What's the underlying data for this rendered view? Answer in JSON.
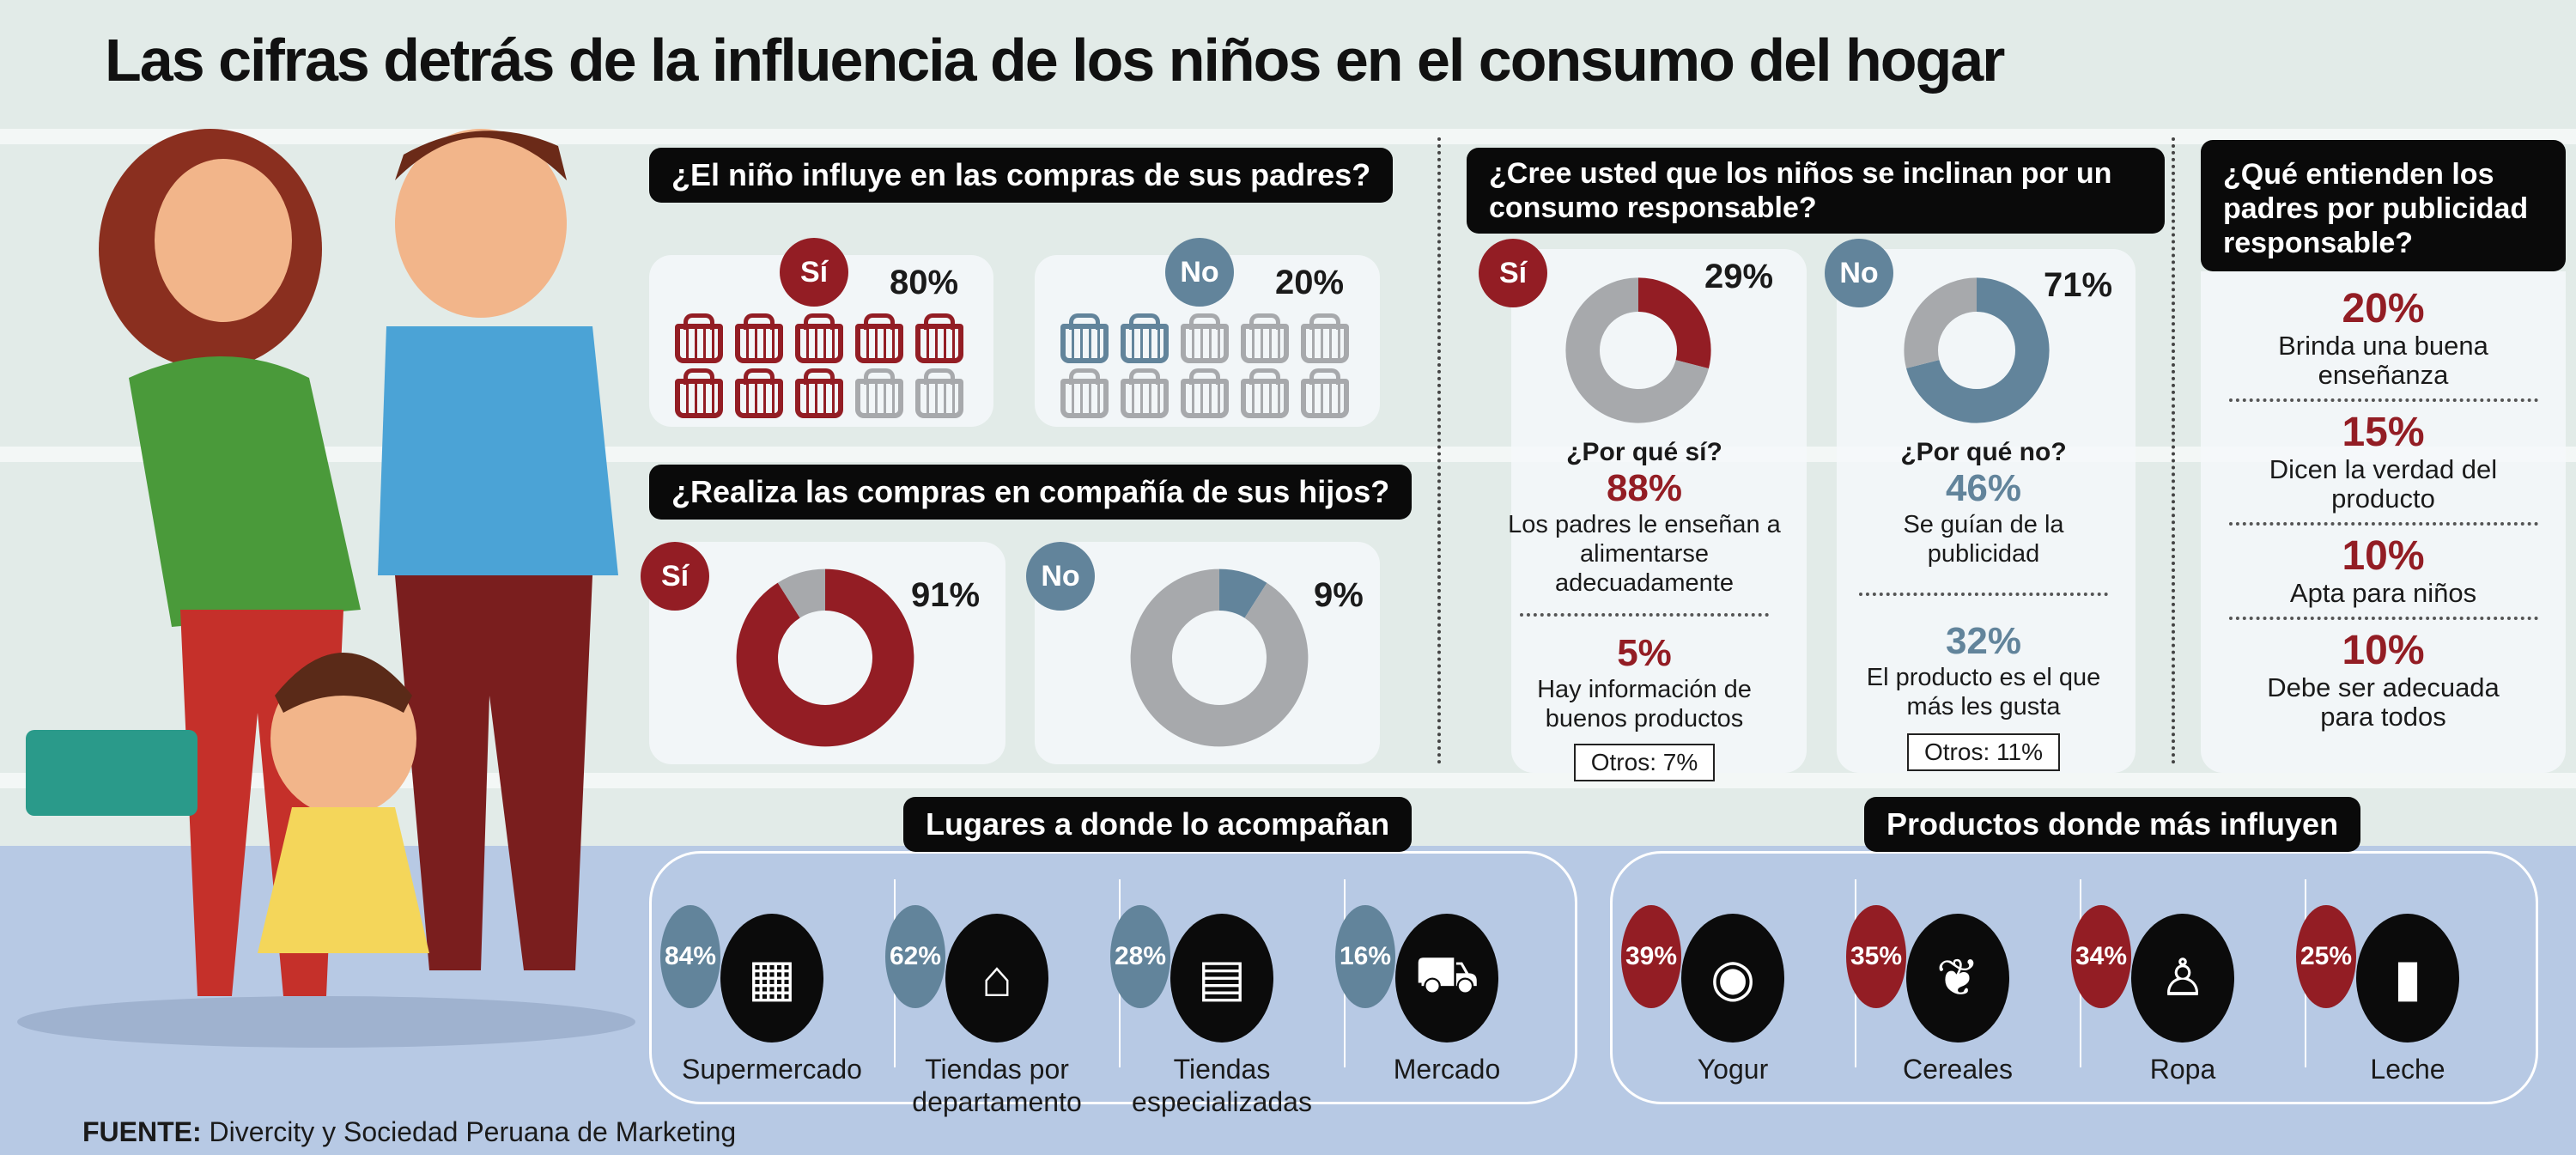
{
  "title": "Las cifras detrás de la influencia de los niños en el consumo del hogar",
  "colors": {
    "red": "#931d24",
    "blue": "#62849b",
    "gray": "#a7a9ac"
  },
  "q1": {
    "question": "¿El niño influye en las compras de sus padres?",
    "yes_label": "Sí",
    "yes_pct": "80%",
    "yes_value": 8,
    "no_label": "No",
    "no_pct": "20%",
    "no_value": 2
  },
  "q2": {
    "question": "¿Realiza las compras en compañía de sus hijos?",
    "yes_label": "Sí",
    "yes_pct": "91%",
    "no_label": "No",
    "no_pct": "9%"
  },
  "q3": {
    "question": "¿Cree usted que los niños se inclinan por un consumo responsable?",
    "yes": {
      "label": "Sí",
      "pct": "29%",
      "why": "¿Por qué sí?",
      "r1_pct": "88%",
      "r1_text": "Los padres le enseñan a alimentarse adecuadamente",
      "r2_pct": "5%",
      "r2_text": "Hay información de buenos productos",
      "otros": "Otros: 7%"
    },
    "no": {
      "label": "No",
      "pct": "71%",
      "why": "¿Por qué no?",
      "r1_pct": "46%",
      "r1_text": "Se guían de la publicidad",
      "r2_pct": "32%",
      "r2_text": "El producto es el que más les gusta",
      "otros": "Otros: 11%"
    }
  },
  "q4": {
    "question": "¿Qué entienden los padres por publicidad responsable?",
    "items": [
      {
        "pct": "20%",
        "text": "Brinda una buena enseñanza"
      },
      {
        "pct": "15%",
        "text": "Dicen la verdad del producto"
      },
      {
        "pct": "10%",
        "text": "Apta para niños"
      },
      {
        "pct": "10%",
        "text": "Debe ser adecuada para todos"
      }
    ]
  },
  "places": {
    "title": "Lugares a donde lo acompañan",
    "items": [
      {
        "pct": "84%",
        "label": "Supermercado"
      },
      {
        "pct": "62%",
        "label": "Tiendas por departamento"
      },
      {
        "pct": "28%",
        "label": "Tiendas especializadas"
      },
      {
        "pct": "16%",
        "label": "Mercado"
      }
    ]
  },
  "products": {
    "title": "Productos donde más influyen",
    "items": [
      {
        "pct": "39%",
        "label": "Yogur"
      },
      {
        "pct": "35%",
        "label": "Cereales"
      },
      {
        "pct": "34%",
        "label": "Ropa"
      },
      {
        "pct": "25%",
        "label": "Leche"
      }
    ]
  },
  "source": {
    "label": "FUENTE:",
    "text": "Divercity y Sociedad Peruana de Marketing"
  },
  "chart_data": [
    {
      "type": "pie",
      "title": "¿Realiza las compras en compañía de sus hijos? Sí",
      "values": [
        91,
        9
      ],
      "categories": [
        "Sí",
        "resto"
      ]
    },
    {
      "type": "pie",
      "title": "¿Realiza las compras en compañía de sus hijos? No",
      "values": [
        9,
        91
      ],
      "categories": [
        "No",
        "resto"
      ]
    },
    {
      "type": "pie",
      "title": "Consumo responsable Sí",
      "values": [
        29,
        71
      ],
      "categories": [
        "Sí",
        "resto"
      ]
    },
    {
      "type": "pie",
      "title": "Consumo responsable No",
      "values": [
        71,
        29
      ],
      "categories": [
        "No",
        "resto"
      ]
    }
  ]
}
